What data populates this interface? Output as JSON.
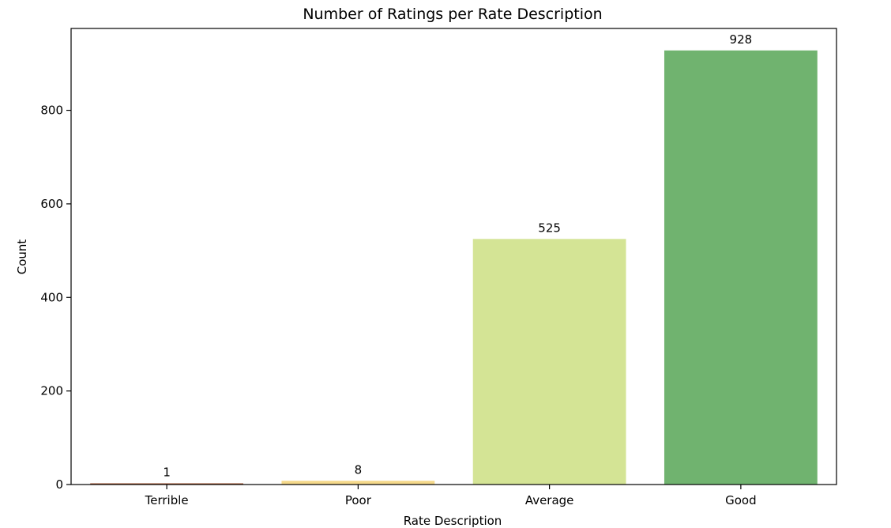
{
  "chart_data": {
    "type": "bar",
    "title": "Number of Ratings per Rate Description",
    "xlabel": "Rate Description",
    "ylabel": "Count",
    "categories": [
      "Terrible",
      "Poor",
      "Average",
      "Good"
    ],
    "values": [
      1,
      8,
      525,
      928
    ],
    "data_labels": [
      "1",
      "8",
      "525",
      "928"
    ],
    "colors": [
      "#a0522d",
      "#f5d98b",
      "#d4e495",
      "#70b36f"
    ],
    "ylim": [
      0,
      975
    ],
    "yticks": [
      0,
      200,
      400,
      600,
      800
    ],
    "ytick_labels": [
      "0",
      "200",
      "400",
      "600",
      "800"
    ],
    "grid": false
  }
}
